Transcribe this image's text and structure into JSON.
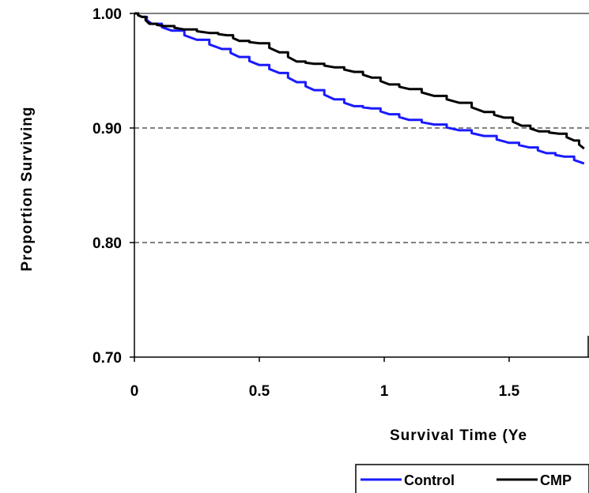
{
  "chart_data": {
    "type": "line",
    "title": "",
    "xlabel": "Survival Time (Ye",
    "ylabel": "Proportion Surviving",
    "xlim": [
      0,
      1.8
    ],
    "ylim": [
      0.7,
      1.0
    ],
    "x_ticks": [
      "0",
      "0.5",
      "1",
      "1.5"
    ],
    "x_tick_values": [
      0,
      0.5,
      1,
      1.5
    ],
    "y_ticks": [
      "0.70",
      "0.80",
      "0.90",
      "1.00"
    ],
    "y_tick_values": [
      0.7,
      0.8,
      0.9,
      1.0
    ],
    "grid": "horizontal dashed",
    "legend_position": "bottom",
    "series": [
      {
        "name": "Control",
        "color": "#1a1aff",
        "x": [
          0,
          0.03,
          0.07,
          0.15,
          0.25,
          0.35,
          0.42,
          0.5,
          0.58,
          0.65,
          0.72,
          0.8,
          0.88,
          0.95,
          1.02,
          1.1,
          1.2,
          1.3,
          1.4,
          1.5,
          1.58,
          1.65,
          1.72,
          1.8
        ],
        "y": [
          1.0,
          0.997,
          0.991,
          0.985,
          0.977,
          0.969,
          0.962,
          0.955,
          0.948,
          0.94,
          0.933,
          0.925,
          0.919,
          0.917,
          0.912,
          0.907,
          0.903,
          0.898,
          0.893,
          0.887,
          0.883,
          0.878,
          0.875,
          0.869
        ]
      },
      {
        "name": "CMP",
        "color": "#000000",
        "x": [
          0,
          0.03,
          0.06,
          0.12,
          0.2,
          0.3,
          0.37,
          0.42,
          0.5,
          0.58,
          0.65,
          0.72,
          0.8,
          0.88,
          0.95,
          1.02,
          1.1,
          1.2,
          1.3,
          1.4,
          1.48,
          1.55,
          1.62,
          1.7,
          1.76,
          1.8
        ],
        "y": [
          1.0,
          0.997,
          0.991,
          0.989,
          0.986,
          0.983,
          0.981,
          0.976,
          0.974,
          0.966,
          0.958,
          0.956,
          0.953,
          0.949,
          0.944,
          0.938,
          0.934,
          0.928,
          0.922,
          0.914,
          0.909,
          0.902,
          0.897,
          0.895,
          0.889,
          0.882
        ]
      }
    ]
  }
}
